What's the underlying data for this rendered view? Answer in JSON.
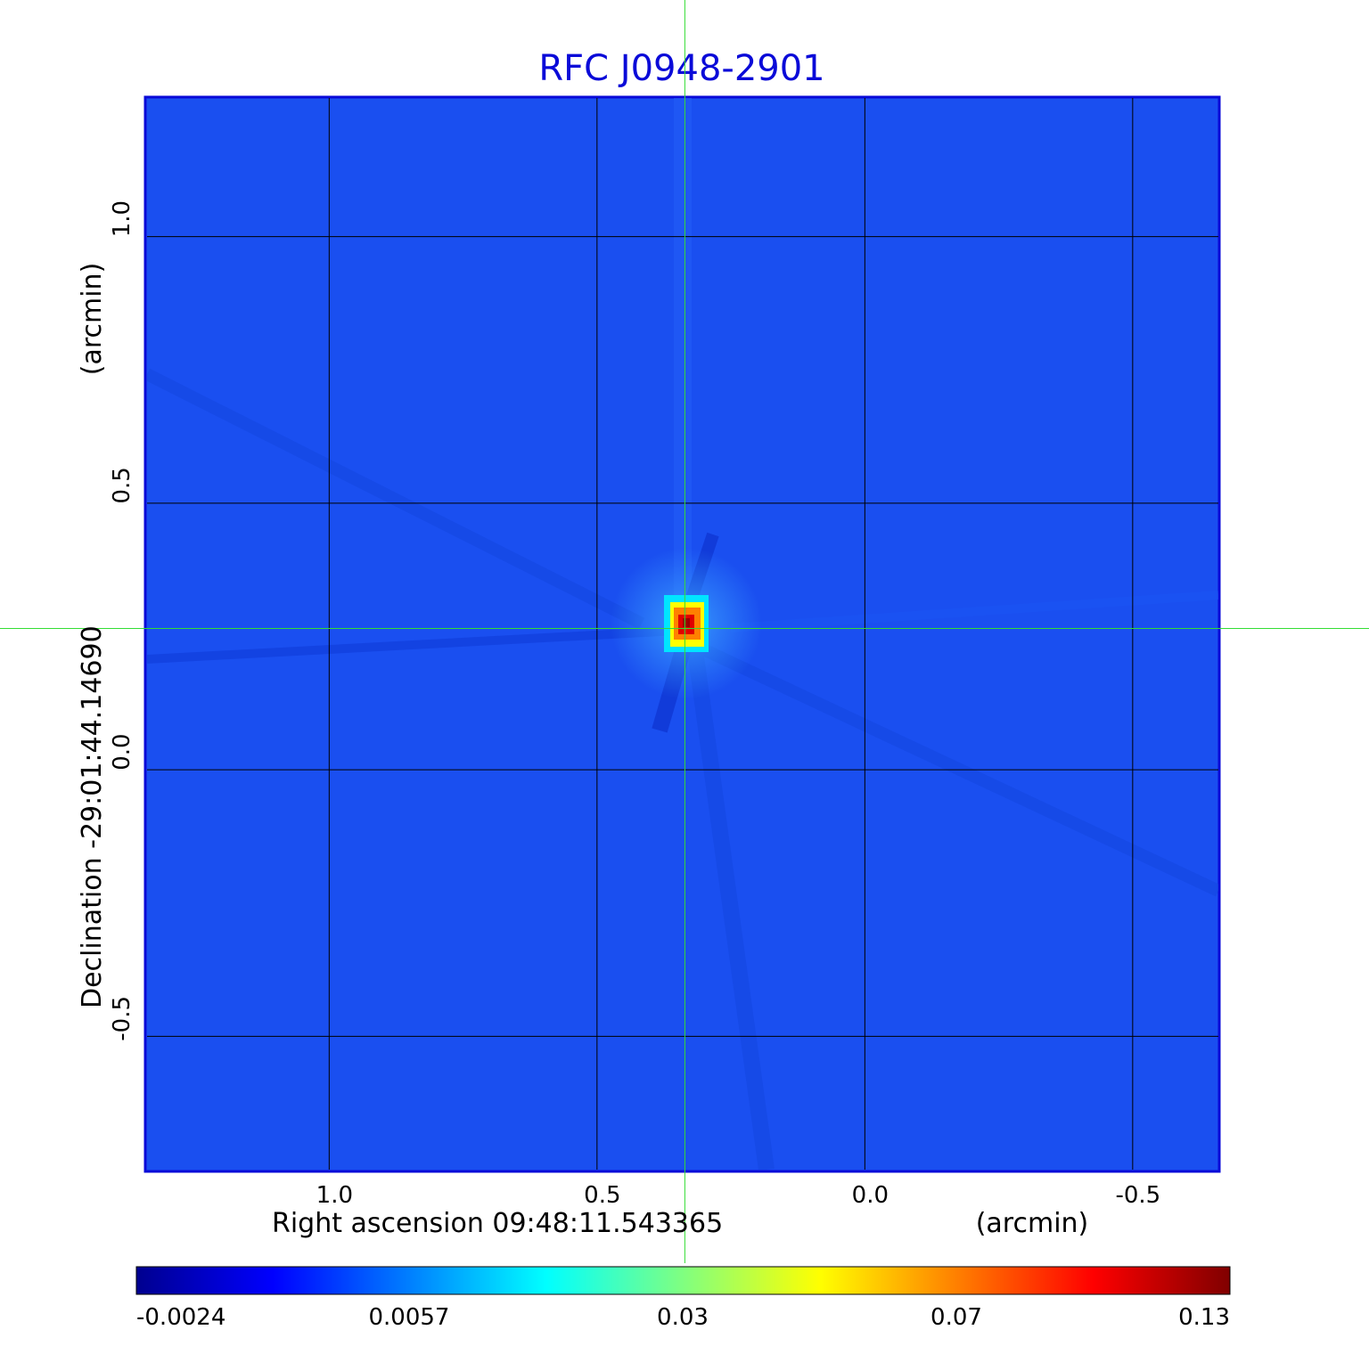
{
  "chart_data": {
    "type": "heatmap",
    "title": "RFC J0948-2901",
    "xlabel": "Right ascension  09:48:11.543365",
    "xunit": "(arcmin)",
    "ylabel": "Declination  -29:01:44.14690",
    "yunit": "(arcmin)",
    "x_ticks": [
      1.0,
      0.5,
      0.0,
      -0.5
    ],
    "x_tick_labels": [
      "1.0",
      "0.5",
      "0.0",
      "-0.5"
    ],
    "y_ticks": [
      1.0,
      0.5,
      0.0,
      -0.5
    ],
    "y_tick_labels": [
      "1.0",
      "0.5",
      "0.0",
      "-0.5"
    ],
    "xlim": [
      1.34,
      -0.66
    ],
    "ylim": [
      -0.75,
      1.26
    ],
    "grid": true,
    "crosshair": {
      "x": 0.336,
      "y": 0.265,
      "color": "#33dd33"
    },
    "peak": {
      "x": 0.336,
      "y": 0.265
    },
    "colormap": "jet",
    "colorbar_ticks": [
      "-0.0024",
      "0.0057",
      "0.03",
      "0.07",
      "0.13"
    ],
    "colorbar_range": [
      -0.0024,
      0.13
    ],
    "colors": {
      "title": "#0a0ad8",
      "frame": "#0a0ad8",
      "background": "#1a4ff0",
      "grid": "#000000",
      "crosshair": "#33dd33"
    }
  }
}
